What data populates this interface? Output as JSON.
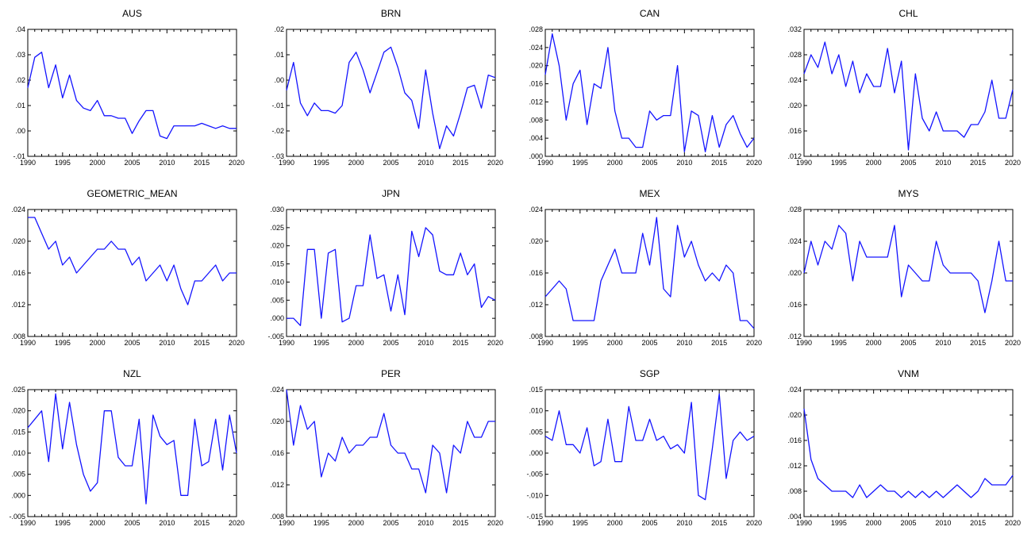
{
  "chart_data": [
    {
      "type": "line",
      "title": "AUS",
      "x_start": 1990,
      "x_end": 2020,
      "xticks": [
        1990,
        1995,
        2000,
        2005,
        2010,
        2015,
        2020
      ],
      "ylim": [
        -0.01,
        0.04
      ],
      "yticks": [
        -0.01,
        0,
        0.01,
        0.02,
        0.03,
        0.04
      ],
      "ytick_labels": [
        "-.01",
        ".00",
        ".01",
        ".02",
        ".03",
        ".04"
      ],
      "series": [
        {
          "name": "AUS",
          "color": "#1414ff",
          "values": [
            0.017,
            0.029,
            0.031,
            0.017,
            0.026,
            0.013,
            0.022,
            0.012,
            0.009,
            0.008,
            0.012,
            0.006,
            0.006,
            0.005,
            0.005,
            -0.001,
            0.004,
            0.008,
            0.008,
            -0.002,
            -0.003,
            0.002,
            0.002,
            0.002,
            0.002,
            0.003,
            0.002,
            0.001,
            0.002,
            0.001,
            0.001
          ]
        }
      ]
    },
    {
      "type": "line",
      "title": "BRN",
      "x_start": 1990,
      "x_end": 2020,
      "xticks": [
        1990,
        1995,
        2000,
        2005,
        2010,
        2015,
        2020
      ],
      "ylim": [
        -0.03,
        0.02
      ],
      "yticks": [
        -0.03,
        -0.02,
        -0.01,
        0,
        0.01,
        0.02
      ],
      "ytick_labels": [
        "-.03",
        "-.02",
        "-.01",
        ".00",
        ".01",
        ".02"
      ],
      "series": [
        {
          "name": "BRN",
          "color": "#1414ff",
          "values": [
            -0.004,
            0.007,
            -0.009,
            -0.014,
            -0.009,
            -0.012,
            -0.012,
            -0.013,
            -0.01,
            0.007,
            0.011,
            0.004,
            -0.005,
            0.003,
            0.011,
            0.013,
            0.005,
            -0.005,
            -0.008,
            -0.019,
            0.004,
            -0.013,
            -0.027,
            -0.018,
            -0.022,
            -0.013,
            -0.003,
            -0.002,
            -0.011,
            0.002,
            0.001
          ]
        }
      ]
    },
    {
      "type": "line",
      "title": "CAN",
      "x_start": 1990,
      "x_end": 2020,
      "xticks": [
        1990,
        1995,
        2000,
        2005,
        2010,
        2015,
        2020
      ],
      "ylim": [
        0,
        0.028
      ],
      "yticks": [
        0,
        0.004,
        0.008,
        0.012,
        0.016,
        0.02,
        0.024,
        0.028
      ],
      "ytick_labels": [
        ".000",
        ".004",
        ".008",
        ".012",
        ".016",
        ".020",
        ".024",
        ".028"
      ],
      "series": [
        {
          "name": "CAN",
          "color": "#1414ff",
          "values": [
            0.018,
            0.027,
            0.02,
            0.008,
            0.016,
            0.019,
            0.007,
            0.016,
            0.015,
            0.024,
            0.01,
            0.004,
            0.004,
            0.002,
            0.002,
            0.01,
            0.008,
            0.009,
            0.009,
            0.02,
            0.001,
            0.01,
            0.009,
            0.001,
            0.009,
            0.002,
            0.007,
            0.009,
            0.005,
            0.002,
            0.004
          ]
        }
      ]
    },
    {
      "type": "line",
      "title": "CHL",
      "x_start": 1990,
      "x_end": 2020,
      "xticks": [
        1990,
        1995,
        2000,
        2005,
        2010,
        2015,
        2020
      ],
      "ylim": [
        0.012,
        0.032
      ],
      "yticks": [
        0.012,
        0.016,
        0.02,
        0.024,
        0.028,
        0.032
      ],
      "ytick_labels": [
        ".012",
        ".016",
        ".020",
        ".024",
        ".028",
        ".032"
      ],
      "series": [
        {
          "name": "CHL",
          "color": "#1414ff",
          "values": [
            0.025,
            0.028,
            0.026,
            0.03,
            0.025,
            0.028,
            0.023,
            0.027,
            0.022,
            0.025,
            0.023,
            0.023,
            0.029,
            0.022,
            0.027,
            0.013,
            0.025,
            0.018,
            0.016,
            0.019,
            0.016,
            0.016,
            0.016,
            0.015,
            0.017,
            0.017,
            0.019,
            0.024,
            0.018,
            0.018,
            0.0225
          ]
        }
      ]
    },
    {
      "type": "line",
      "title": "GEOMETRIC_MEAN",
      "x_start": 1990,
      "x_end": 2020,
      "xticks": [
        1990,
        1995,
        2000,
        2005,
        2010,
        2015,
        2020
      ],
      "ylim": [
        0.008,
        0.024
      ],
      "yticks": [
        0.008,
        0.012,
        0.016,
        0.02,
        0.024
      ],
      "ytick_labels": [
        ".008",
        ".012",
        ".016",
        ".020",
        ".024"
      ],
      "series": [
        {
          "name": "GEOMETRIC_MEAN",
          "color": "#1414ff",
          "values": [
            0.023,
            0.023,
            0.021,
            0.019,
            0.02,
            0.017,
            0.018,
            0.016,
            0.017,
            0.018,
            0.019,
            0.019,
            0.02,
            0.019,
            0.019,
            0.017,
            0.018,
            0.015,
            0.016,
            0.017,
            0.015,
            0.017,
            0.014,
            0.012,
            0.015,
            0.015,
            0.016,
            0.017,
            0.015,
            0.016,
            0.016
          ]
        }
      ]
    },
    {
      "type": "line",
      "title": "JPN",
      "x_start": 1990,
      "x_end": 2020,
      "xticks": [
        1990,
        1995,
        2000,
        2005,
        2010,
        2015,
        2020
      ],
      "ylim": [
        -0.005,
        0.03
      ],
      "yticks": [
        -0.005,
        0,
        0.005,
        0.01,
        0.015,
        0.02,
        0.025,
        0.03
      ],
      "ytick_labels": [
        "-.005",
        ".000",
        ".005",
        ".010",
        ".015",
        ".020",
        ".025",
        ".030"
      ],
      "series": [
        {
          "name": "JPN",
          "color": "#1414ff",
          "values": [
            0,
            0,
            -0.002,
            0.019,
            0.019,
            0,
            0.018,
            0.019,
            -0.001,
            0,
            0.009,
            0.009,
            0.023,
            0.011,
            0.012,
            0.002,
            0.012,
            0.001,
            0.024,
            0.017,
            0.025,
            0.023,
            0.013,
            0.012,
            0.012,
            0.018,
            0.012,
            0.015,
            0.003,
            0.006,
            0.005
          ]
        }
      ]
    },
    {
      "type": "line",
      "title": "MEX",
      "x_start": 1990,
      "x_end": 2020,
      "xticks": [
        1990,
        1995,
        2000,
        2005,
        2010,
        2015,
        2020
      ],
      "ylim": [
        0.008,
        0.024
      ],
      "yticks": [
        0.008,
        0.012,
        0.016,
        0.02,
        0.024
      ],
      "ytick_labels": [
        ".008",
        ".012",
        ".016",
        ".020",
        ".024"
      ],
      "series": [
        {
          "name": "MEX",
          "color": "#1414ff",
          "values": [
            0.013,
            0.014,
            0.015,
            0.014,
            0.01,
            0.01,
            0.01,
            0.01,
            0.015,
            0.017,
            0.019,
            0.016,
            0.016,
            0.016,
            0.021,
            0.017,
            0.023,
            0.014,
            0.013,
            0.022,
            0.018,
            0.02,
            0.017,
            0.015,
            0.016,
            0.015,
            0.017,
            0.016,
            0.01,
            0.01,
            0.009
          ]
        }
      ]
    },
    {
      "type": "line",
      "title": "MYS",
      "x_start": 1990,
      "x_end": 2020,
      "xticks": [
        1990,
        1995,
        2000,
        2005,
        2010,
        2015,
        2020
      ],
      "ylim": [
        0.012,
        0.028
      ],
      "yticks": [
        0.012,
        0.016,
        0.02,
        0.024,
        0.028
      ],
      "ytick_labels": [
        ".012",
        ".016",
        ".020",
        ".024",
        ".028"
      ],
      "series": [
        {
          "name": "MYS",
          "color": "#1414ff",
          "values": [
            0.02,
            0.024,
            0.021,
            0.024,
            0.023,
            0.026,
            0.025,
            0.019,
            0.024,
            0.022,
            0.022,
            0.022,
            0.022,
            0.026,
            0.017,
            0.021,
            0.02,
            0.019,
            0.019,
            0.024,
            0.021,
            0.02,
            0.02,
            0.02,
            0.02,
            0.019,
            0.015,
            0.019,
            0.024,
            0.019,
            0.019
          ]
        }
      ]
    },
    {
      "type": "line",
      "title": "NZL",
      "x_start": 1990,
      "x_end": 2020,
      "xticks": [
        1990,
        1995,
        2000,
        2005,
        2010,
        2015,
        2020
      ],
      "ylim": [
        -0.005,
        0.025
      ],
      "yticks": [
        -0.005,
        0,
        0.005,
        0.01,
        0.015,
        0.02,
        0.025
      ],
      "ytick_labels": [
        "-.005",
        ".000",
        ".005",
        ".010",
        ".015",
        ".020",
        ".025"
      ],
      "series": [
        {
          "name": "NZL",
          "color": "#1414ff",
          "values": [
            0.016,
            0.018,
            0.02,
            0.008,
            0.024,
            0.011,
            0.022,
            0.012,
            0.005,
            0.001,
            0.003,
            0.02,
            0.02,
            0.009,
            0.007,
            0.007,
            0.018,
            -0.002,
            0.019,
            0.014,
            0.012,
            0.013,
            0,
            0,
            0.018,
            0.007,
            0.008,
            0.018,
            0.006,
            0.019,
            0.01
          ]
        }
      ]
    },
    {
      "type": "line",
      "title": "PER",
      "x_start": 1990,
      "x_end": 2020,
      "xticks": [
        1990,
        1995,
        2000,
        2005,
        2010,
        2015,
        2020
      ],
      "ylim": [
        0.008,
        0.024
      ],
      "yticks": [
        0.008,
        0.012,
        0.016,
        0.02,
        0.024
      ],
      "ytick_labels": [
        ".008",
        ".012",
        ".016",
        ".020",
        ".024"
      ],
      "series": [
        {
          "name": "PER",
          "color": "#1414ff",
          "values": [
            0.024,
            0.017,
            0.022,
            0.019,
            0.02,
            0.013,
            0.016,
            0.015,
            0.018,
            0.016,
            0.017,
            0.017,
            0.018,
            0.018,
            0.021,
            0.017,
            0.016,
            0.016,
            0.014,
            0.014,
            0.011,
            0.017,
            0.016,
            0.011,
            0.017,
            0.016,
            0.02,
            0.018,
            0.018,
            0.02,
            0.02
          ]
        }
      ]
    },
    {
      "type": "line",
      "title": "SGP",
      "x_start": 1990,
      "x_end": 2020,
      "xticks": [
        1990,
        1995,
        2000,
        2005,
        2010,
        2015,
        2020
      ],
      "ylim": [
        -0.015,
        0.015
      ],
      "yticks": [
        -0.015,
        -0.01,
        -0.005,
        0,
        0.005,
        0.01,
        0.015
      ],
      "ytick_labels": [
        "-.015",
        "-.010",
        "-.005",
        ".000",
        ".005",
        ".010",
        ".015"
      ],
      "series": [
        {
          "name": "SGP",
          "color": "#1414ff",
          "values": [
            0.004,
            0.003,
            0.01,
            0.002,
            0.002,
            0,
            0.006,
            -0.003,
            -0.002,
            0.008,
            -0.002,
            -0.002,
            0.011,
            0.003,
            0.003,
            0.008,
            0.003,
            0.004,
            0.001,
            0.002,
            0,
            0.012,
            -0.01,
            -0.011,
            0.001,
            0.014,
            -0.006,
            0.003,
            0.005,
            0.003,
            0.004
          ]
        }
      ]
    },
    {
      "type": "line",
      "title": "VNM",
      "x_start": 1990,
      "x_end": 2020,
      "xticks": [
        1990,
        1995,
        2000,
        2005,
        2010,
        2015,
        2020
      ],
      "ylim": [
        0.004,
        0.024
      ],
      "yticks": [
        0.004,
        0.008,
        0.012,
        0.016,
        0.02,
        0.024
      ],
      "ytick_labels": [
        ".004",
        ".008",
        ".012",
        ".016",
        ".020",
        ".024"
      ],
      "series": [
        {
          "name": "VNM",
          "color": "#1414ff",
          "values": [
            0.021,
            0.013,
            0.01,
            0.009,
            0.008,
            0.008,
            0.008,
            0.007,
            0.009,
            0.007,
            0.008,
            0.009,
            0.008,
            0.008,
            0.007,
            0.008,
            0.007,
            0.008,
            0.007,
            0.008,
            0.007,
            0.008,
            0.009,
            0.008,
            0.007,
            0.008,
            0.01,
            0.009,
            0.009,
            0.009,
            0.0105
          ]
        }
      ]
    }
  ]
}
